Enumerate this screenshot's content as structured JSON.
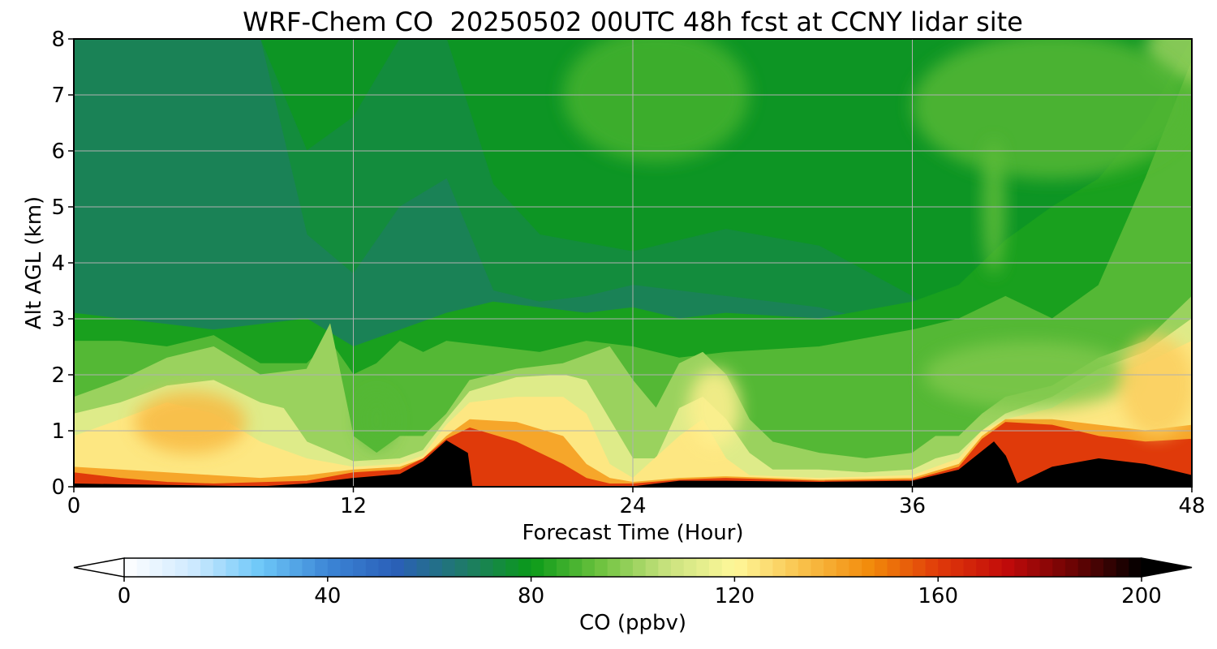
{
  "chart_data": {
    "type": "heatmap",
    "title": "WRF-Chem CO  20250502 00UTC 48h fcst at CCNY lidar site",
    "xlabel": "Forecast Time (Hour)",
    "ylabel": "Alt AGL (km)",
    "xlim": [
      0,
      48
    ],
    "ylim": [
      0,
      8
    ],
    "x_ticks": [
      "0",
      "12",
      "24",
      "36",
      "48"
    ],
    "y_ticks": [
      "0",
      "1",
      "2",
      "3",
      "4",
      "5",
      "6",
      "7",
      "8"
    ],
    "grid": true,
    "colorbar": {
      "label": "CO  (ppbv)",
      "range": [
        0,
        200
      ],
      "ticks": [
        "0",
        "40",
        "80",
        "120",
        "160",
        "200"
      ],
      "extend": "both",
      "orientation": "horizontal",
      "colors": [
        "#ffffff",
        "#cfeaff",
        "#6ec8f8",
        "#3c86d6",
        "#2a5fb8",
        "#1f7a6a",
        "#0a9a18",
        "#6cc23e",
        "#c8e27e",
        "#fff89a",
        "#f9c14a",
        "#f28a0a",
        "#e03a0a",
        "#c20a0a",
        "#6a0404",
        "#000000"
      ]
    },
    "layers": [
      {
        "co": 78,
        "profile": [
          [
            0,
            8
          ],
          [
            48,
            8
          ]
        ]
      },
      {
        "co": 74,
        "profile": [
          [
            0,
            8
          ],
          [
            4,
            8
          ],
          [
            8,
            8
          ],
          [
            10,
            6
          ],
          [
            12,
            6.6
          ],
          [
            14,
            8
          ],
          [
            16,
            8
          ],
          [
            18,
            5.4
          ],
          [
            20,
            4.5
          ],
          [
            24,
            4.2
          ],
          [
            28,
            4.6
          ],
          [
            32,
            4.3
          ],
          [
            36,
            3.4
          ],
          [
            38,
            2.6
          ],
          [
            40,
            3.2
          ],
          [
            41,
            4.2
          ],
          [
            42,
            4.6
          ],
          [
            44,
            4.5
          ],
          [
            46,
            5.2
          ],
          [
            48,
            5.3
          ]
        ]
      },
      {
        "co": 70,
        "profile": [
          [
            0,
            8
          ],
          [
            4,
            8
          ],
          [
            8,
            8
          ],
          [
            10,
            4.5
          ],
          [
            12,
            3.8
          ],
          [
            14,
            5
          ],
          [
            16,
            5.5
          ],
          [
            18,
            3.5
          ],
          [
            20,
            3.3
          ],
          [
            22,
            3.4
          ],
          [
            24,
            3.6
          ],
          [
            28,
            3.4
          ],
          [
            32,
            3.2
          ],
          [
            36,
            2.8
          ],
          [
            38,
            2.4
          ],
          [
            40,
            2.6
          ],
          [
            42,
            2.7
          ],
          [
            44,
            2.6
          ],
          [
            48,
            2.8
          ]
        ]
      },
      {
        "co": 82,
        "profile": [
          [
            0,
            3.1
          ],
          [
            2,
            3.0
          ],
          [
            4,
            2.9
          ],
          [
            6,
            2.8
          ],
          [
            8,
            2.9
          ],
          [
            10,
            3.0
          ],
          [
            12,
            2.5
          ],
          [
            14,
            2.8
          ],
          [
            16,
            3.1
          ],
          [
            18,
            3.3
          ],
          [
            20,
            3.2
          ],
          [
            22,
            3.1
          ],
          [
            24,
            3.2
          ],
          [
            26,
            3.0
          ],
          [
            28,
            3.1
          ],
          [
            32,
            3.0
          ],
          [
            36,
            3.3
          ],
          [
            38,
            3.6
          ],
          [
            40,
            4.4
          ],
          [
            42,
            5.0
          ],
          [
            44,
            5.5
          ],
          [
            46,
            6.5
          ],
          [
            48,
            8
          ]
        ]
      },
      {
        "co": 90,
        "profile": [
          [
            0,
            2.6
          ],
          [
            2,
            2.6
          ],
          [
            4,
            2.5
          ],
          [
            6,
            2.7
          ],
          [
            8,
            2.2
          ],
          [
            10,
            2.2
          ],
          [
            11,
            2.6
          ],
          [
            12,
            2.0
          ],
          [
            13,
            2.2
          ],
          [
            14,
            2.6
          ],
          [
            15,
            2.4
          ],
          [
            16,
            2.6
          ],
          [
            18,
            2.5
          ],
          [
            20,
            2.4
          ],
          [
            22,
            2.6
          ],
          [
            24,
            2.5
          ],
          [
            26,
            2.3
          ],
          [
            28,
            2.4
          ],
          [
            32,
            2.5
          ],
          [
            36,
            2.8
          ],
          [
            38,
            3.0
          ],
          [
            40,
            3.4
          ],
          [
            42,
            3.0
          ],
          [
            44,
            3.6
          ],
          [
            46,
            5.5
          ],
          [
            48,
            7.6
          ]
        ]
      },
      {
        "co": 100,
        "profile": [
          [
            0,
            1.6
          ],
          [
            2,
            1.9
          ],
          [
            4,
            2.3
          ],
          [
            6,
            2.5
          ],
          [
            8,
            2.0
          ],
          [
            10,
            2.1
          ],
          [
            11,
            2.9
          ],
          [
            12,
            0.9
          ],
          [
            13,
            0.6
          ],
          [
            14,
            0.9
          ],
          [
            15,
            0.9
          ],
          [
            16,
            1.3
          ],
          [
            17,
            1.9
          ],
          [
            19,
            2.1
          ],
          [
            21,
            2.2
          ],
          [
            23,
            2.5
          ],
          [
            24,
            1.9
          ],
          [
            25,
            1.4
          ],
          [
            26,
            2.2
          ],
          [
            27,
            2.4
          ],
          [
            28,
            2.0
          ],
          [
            29,
            1.2
          ],
          [
            30,
            0.8
          ],
          [
            32,
            0.6
          ],
          [
            34,
            0.5
          ],
          [
            36,
            0.6
          ],
          [
            37,
            0.9
          ],
          [
            38,
            0.9
          ],
          [
            39,
            1.3
          ],
          [
            40,
            1.6
          ],
          [
            42,
            1.8
          ],
          [
            44,
            2.3
          ],
          [
            46,
            2.6
          ],
          [
            48,
            3.4
          ]
        ]
      },
      {
        "co": 112,
        "profile": [
          [
            0,
            1.3
          ],
          [
            2,
            1.5
          ],
          [
            4,
            1.8
          ],
          [
            6,
            1.9
          ],
          [
            8,
            1.5
          ],
          [
            9,
            1.4
          ],
          [
            10,
            0.8
          ],
          [
            12,
            0.45
          ],
          [
            14,
            0.5
          ],
          [
            15,
            0.65
          ],
          [
            16,
            1.2
          ],
          [
            17,
            1.7
          ],
          [
            19,
            1.95
          ],
          [
            21,
            2.0
          ],
          [
            22,
            1.9
          ],
          [
            23,
            1.2
          ],
          [
            24,
            0.5
          ],
          [
            25,
            0.5
          ],
          [
            26,
            1.4
          ],
          [
            27,
            1.6
          ],
          [
            28,
            1.2
          ],
          [
            29,
            0.6
          ],
          [
            30,
            0.3
          ],
          [
            32,
            0.3
          ],
          [
            34,
            0.25
          ],
          [
            36,
            0.3
          ],
          [
            37,
            0.5
          ],
          [
            38,
            0.6
          ],
          [
            39,
            1.0
          ],
          [
            40,
            1.3
          ],
          [
            42,
            1.6
          ],
          [
            44,
            2.1
          ],
          [
            46,
            2.4
          ],
          [
            48,
            3.0
          ]
        ]
      },
      {
        "co": 124,
        "profile": [
          [
            0,
            0.9
          ],
          [
            2,
            1.2
          ],
          [
            4,
            1.5
          ],
          [
            6,
            1.3
          ],
          [
            8,
            0.8
          ],
          [
            10,
            0.5
          ],
          [
            12,
            0.35
          ],
          [
            14,
            0.4
          ],
          [
            15,
            0.55
          ],
          [
            16,
            1.1
          ],
          [
            17,
            1.5
          ],
          [
            19,
            1.6
          ],
          [
            21,
            1.6
          ],
          [
            22,
            1.3
          ],
          [
            23,
            0.4
          ],
          [
            24,
            0.15
          ],
          [
            26,
            0.9
          ],
          [
            27,
            1.2
          ],
          [
            28,
            0.5
          ],
          [
            29,
            0.2
          ],
          [
            32,
            0.15
          ],
          [
            36,
            0.2
          ],
          [
            38,
            0.5
          ],
          [
            39,
            1.0
          ],
          [
            40,
            1.2
          ],
          [
            42,
            1.4
          ],
          [
            44,
            1.9
          ],
          [
            46,
            2.2
          ],
          [
            48,
            2.6
          ]
        ]
      },
      {
        "co": 140,
        "profile": [
          [
            0,
            0.35
          ],
          [
            2,
            0.3
          ],
          [
            4,
            0.25
          ],
          [
            6,
            0.2
          ],
          [
            8,
            0.15
          ],
          [
            10,
            0.2
          ],
          [
            12,
            0.3
          ],
          [
            14,
            0.35
          ],
          [
            15,
            0.5
          ],
          [
            16,
            0.9
          ],
          [
            17,
            1.2
          ],
          [
            19,
            1.15
          ],
          [
            21,
            0.9
          ],
          [
            22,
            0.4
          ],
          [
            23,
            0.15
          ],
          [
            24,
            0.08
          ],
          [
            26,
            0.15
          ],
          [
            28,
            0.18
          ],
          [
            32,
            0.12
          ],
          [
            36,
            0.15
          ],
          [
            38,
            0.4
          ],
          [
            39,
            0.9
          ],
          [
            40,
            1.2
          ],
          [
            42,
            1.2
          ],
          [
            44,
            1.1
          ],
          [
            46,
            1.0
          ],
          [
            48,
            1.1
          ]
        ]
      },
      {
        "co": 160,
        "profile": [
          [
            0,
            0.25
          ],
          [
            2,
            0.15
          ],
          [
            4,
            0.08
          ],
          [
            6,
            0.05
          ],
          [
            10,
            0.1
          ],
          [
            12,
            0.25
          ],
          [
            14,
            0.3
          ],
          [
            15,
            0.5
          ],
          [
            16,
            0.85
          ],
          [
            17,
            1.05
          ],
          [
            19,
            0.8
          ],
          [
            21,
            0.4
          ],
          [
            22,
            0.15
          ],
          [
            23,
            0.05
          ],
          [
            24,
            0.05
          ],
          [
            26,
            0.12
          ],
          [
            28,
            0.15
          ],
          [
            32,
            0.1
          ],
          [
            36,
            0.12
          ],
          [
            38,
            0.35
          ],
          [
            39,
            0.85
          ],
          [
            40,
            1.15
          ],
          [
            42,
            1.1
          ],
          [
            44,
            0.9
          ],
          [
            46,
            0.8
          ],
          [
            48,
            0.85
          ]
        ]
      },
      {
        "co": 200,
        "profile": [
          [
            0,
            0.05
          ],
          [
            8,
            0.0
          ],
          [
            10,
            0.05
          ],
          [
            12,
            0.15
          ],
          [
            14,
            0.22
          ],
          [
            15,
            0.45
          ],
          [
            16,
            0.82
          ],
          [
            16.9,
            0.6
          ],
          [
            17.1,
            0.0
          ],
          [
            24,
            0.0
          ],
          [
            25,
            0.05
          ],
          [
            26,
            0.1
          ],
          [
            28,
            0.1
          ],
          [
            32,
            0.08
          ],
          [
            36,
            0.1
          ],
          [
            38,
            0.3
          ],
          [
            39.5,
            0.8
          ],
          [
            40,
            0.55
          ],
          [
            40.5,
            0.05
          ],
          [
            41,
            0.15
          ],
          [
            42,
            0.35
          ],
          [
            44,
            0.5
          ],
          [
            46,
            0.4
          ],
          [
            48,
            0.2
          ]
        ]
      }
    ],
    "blobs": [
      {
        "co": 135,
        "x": 5,
        "y": 1.15,
        "dx": 2.4,
        "dy": 0.55
      },
      {
        "co": 122,
        "x": 27.5,
        "y": 1.4,
        "dx": 1.1,
        "dy": 0.7
      },
      {
        "co": 90,
        "x": 13,
        "y": 1.2,
        "dx": 0.8,
        "dy": 0.5
      },
      {
        "co": 96,
        "x": 41,
        "y": 2.0,
        "dx": 4.5,
        "dy": 0.6
      },
      {
        "co": 130,
        "x": 46.5,
        "y": 1.8,
        "dx": 1.6,
        "dy": 0.9
      },
      {
        "co": 100,
        "x": 48,
        "y": 7.8,
        "dx": 2.0,
        "dy": 0.6
      },
      {
        "co": 88,
        "x": 25,
        "y": 7.0,
        "dx": 4.0,
        "dy": 1.2
      },
      {
        "co": 90,
        "x": 42,
        "y": 6.8,
        "dx": 6.0,
        "dy": 1.3
      },
      {
        "co": 92,
        "x": 39.5,
        "y": 5.0,
        "dx": 0.5,
        "dy": 1.2
      }
    ]
  }
}
